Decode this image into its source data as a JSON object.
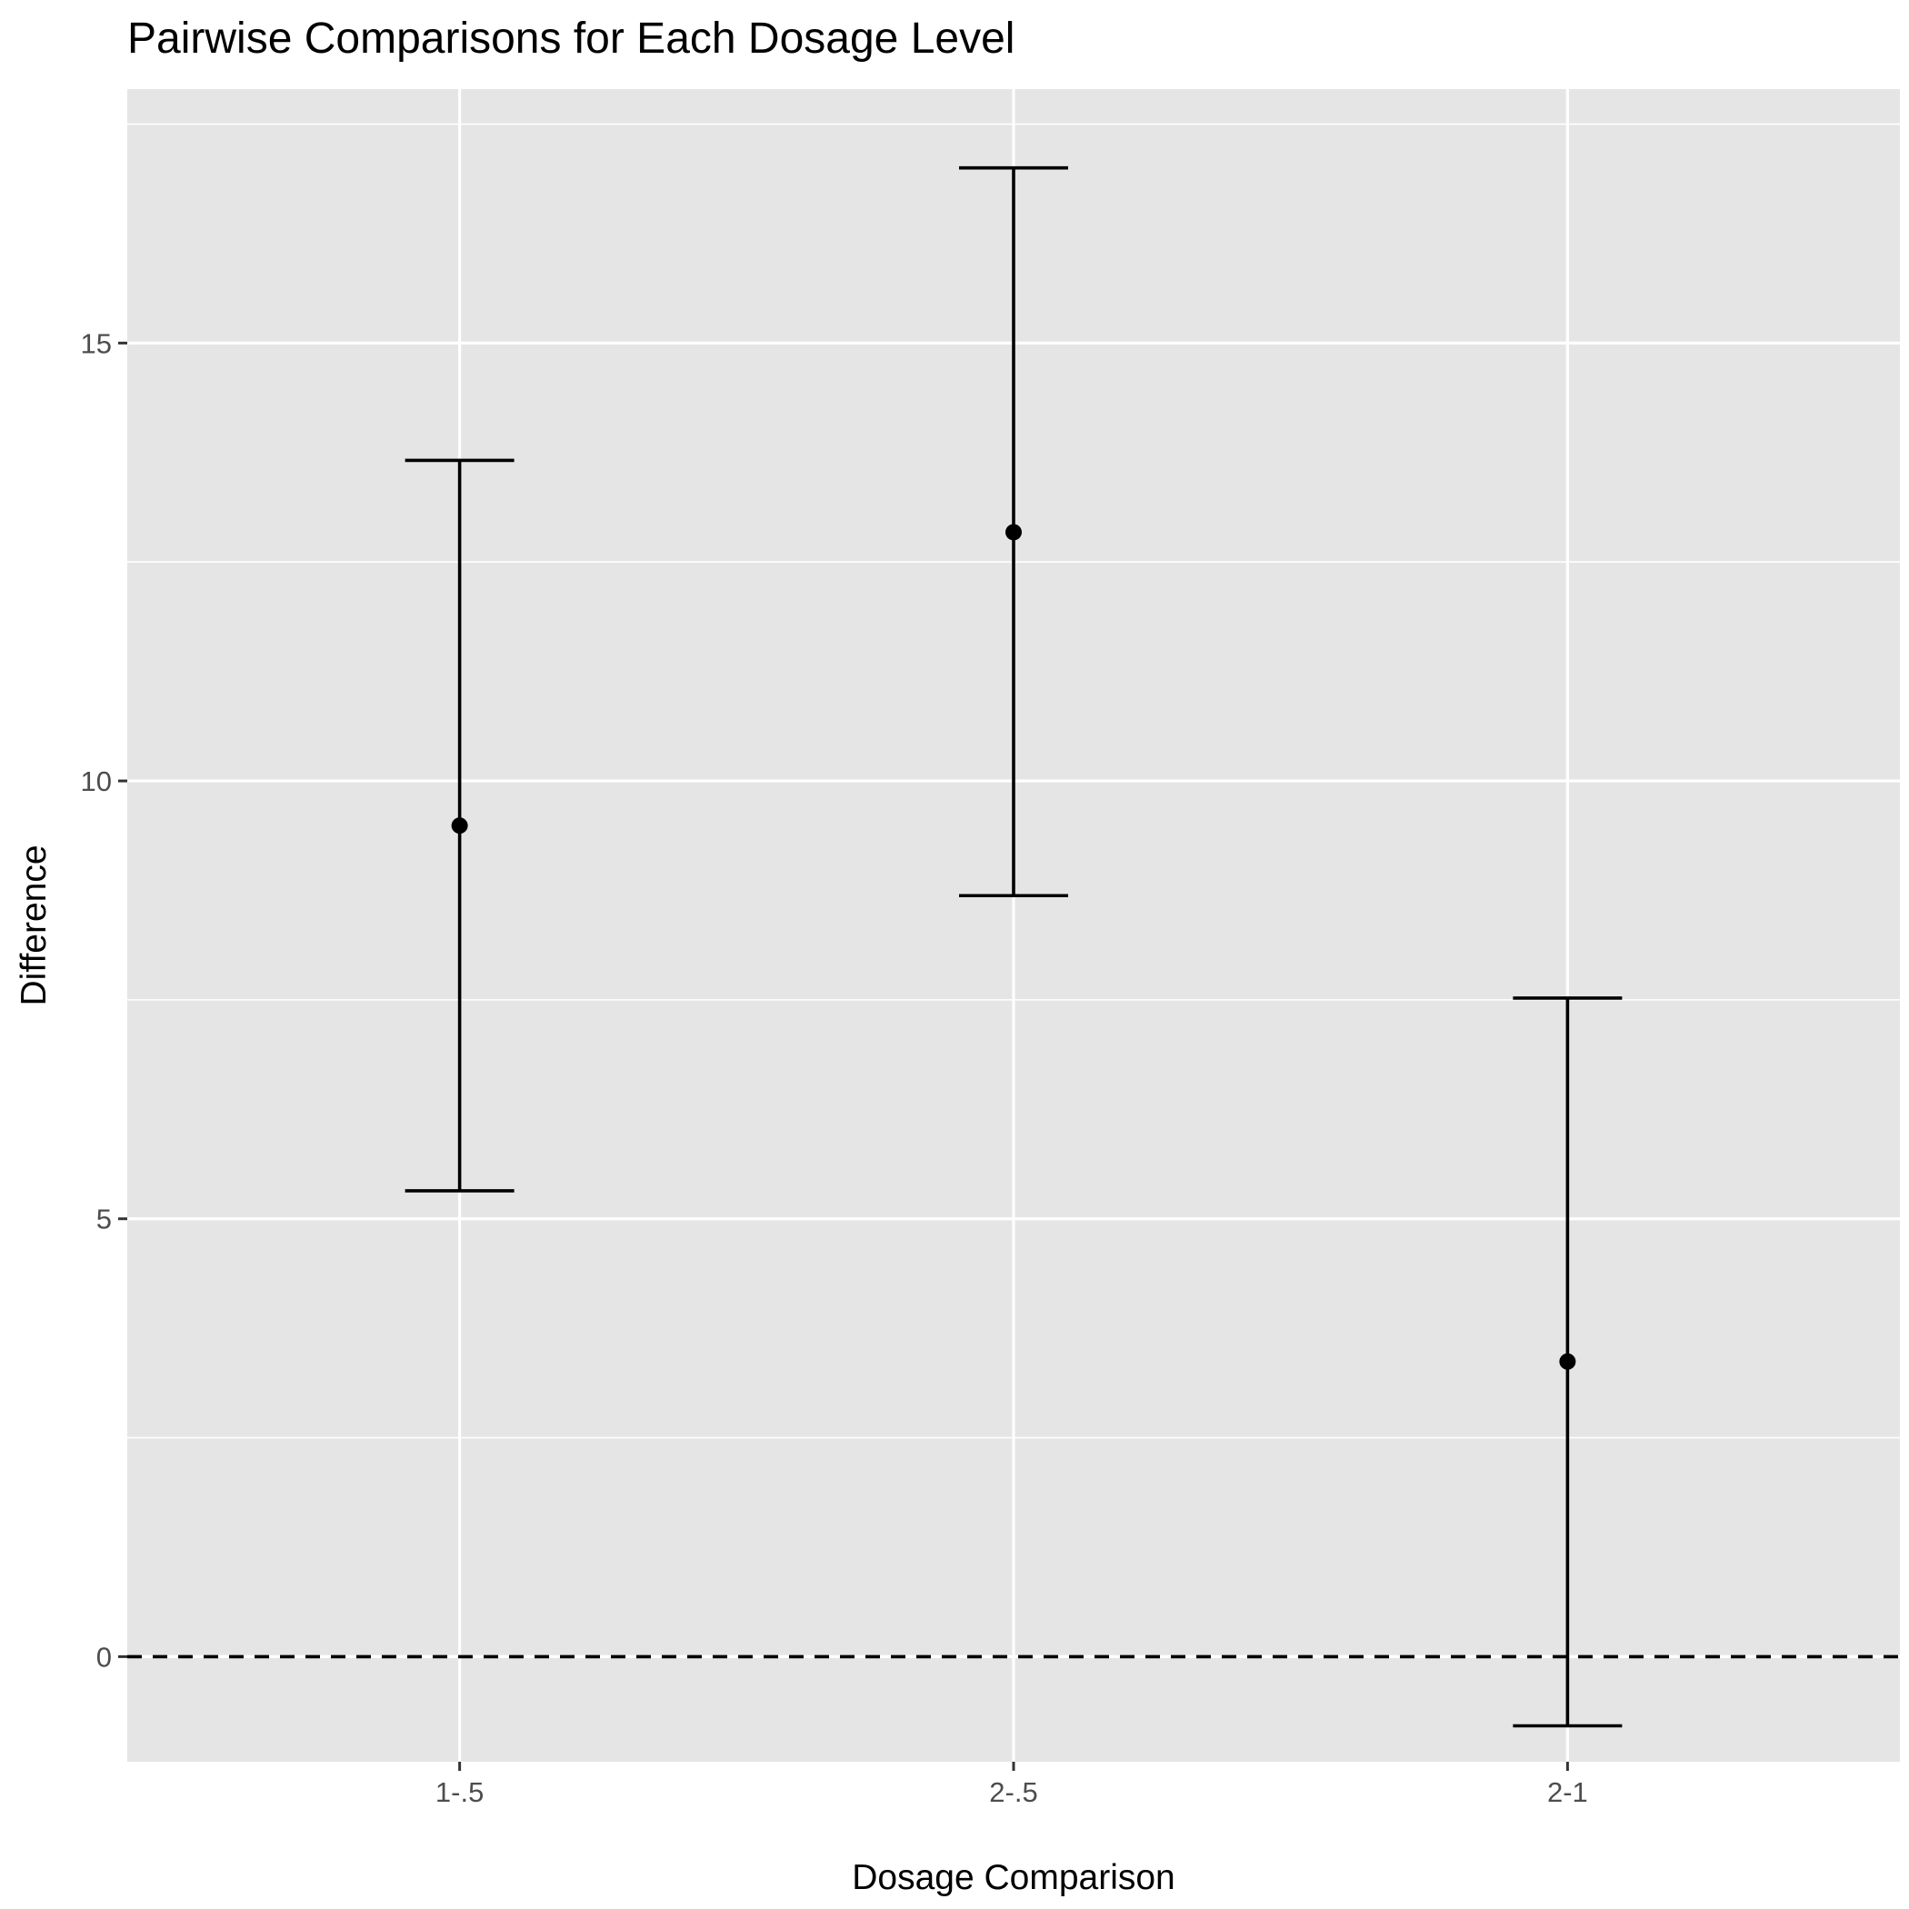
{
  "chart_data": {
    "type": "errorbar",
    "title": "Pairwise Comparisons for Each Dosage Level",
    "xlabel": "Dosage Comparison",
    "ylabel": "Difference",
    "categories": [
      "1-.5",
      "2-.5",
      "2-1"
    ],
    "series": [
      {
        "estimate": [
          9.49,
          12.84,
          3.37
        ],
        "lower": [
          5.32,
          8.69,
          -0.79
        ],
        "upper": [
          13.66,
          17.0,
          7.52
        ]
      }
    ],
    "y_ticks": [
      0,
      5,
      10,
      15
    ],
    "y_tick_labels": [
      "0",
      "5",
      "10",
      "15"
    ],
    "ylim": [
      -1.2,
      17.9
    ],
    "reference_line": {
      "y": 0,
      "style": "dashed"
    },
    "grid": true,
    "legend": "none",
    "colors": {
      "panel_background": "#e5e5e5",
      "grid": "#ffffff",
      "marks": "#000000",
      "tick_text": "#4d4d4d"
    }
  }
}
